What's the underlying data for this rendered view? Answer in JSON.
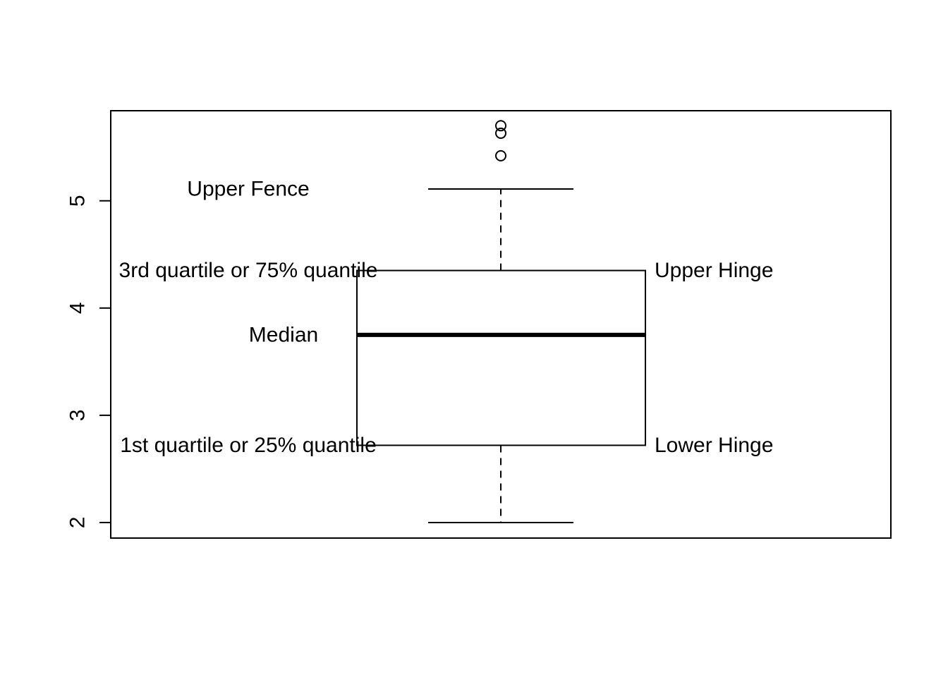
{
  "chart_data": {
    "type": "boxplot",
    "title": "",
    "xlabel": "",
    "ylabel": "",
    "ylim": [
      1.855,
      5.84
    ],
    "yticks": [
      2,
      3,
      4,
      5
    ],
    "ytick_labels": [
      "2",
      "3",
      "4",
      "5"
    ],
    "box": {
      "lower_whisker": 2.0,
      "q1": 2.72,
      "median": 3.75,
      "q3": 4.35,
      "upper_whisker": 5.11,
      "outliers": [
        5.42,
        5.63,
        5.7
      ]
    },
    "annotations": {
      "upper_fence": "Upper Fence",
      "q3": "3rd quartile or 75% quantile",
      "upper_hinge": "Upper Hinge",
      "median": "Median",
      "q1": "1st quartile or 25% quantile",
      "lower_hinge": "Lower Hinge"
    },
    "grid": false,
    "legend": "none"
  }
}
